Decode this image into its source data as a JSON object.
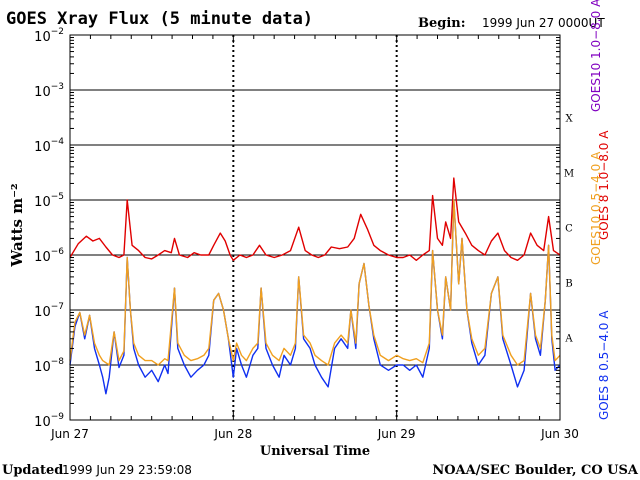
{
  "header": {
    "title": "GOES Xray Flux (5 minute data)",
    "begin_label": "Begin:",
    "begin_value": "1999 Jun 27 0000UT"
  },
  "footer": {
    "updated_label": "Updated",
    "updated_value": "1999 Jun 29 23:59:08",
    "credit": "NOAA/SEC Boulder, CO USA"
  },
  "chart_data": {
    "type": "line",
    "title": "GOES Xray Flux (5 minute data)",
    "xlabel": "Universal Time",
    "ylabel": "Watts m⁻²",
    "y_scale": "log",
    "ylim": [
      1e-09,
      0.01
    ],
    "y_ticks": [
      {
        "value": 1e-09,
        "base": "10",
        "exp": "−9"
      },
      {
        "value": 1e-08,
        "base": "10",
        "exp": "−8"
      },
      {
        "value": 1e-07,
        "base": "10",
        "exp": "−7"
      },
      {
        "value": 1e-06,
        "base": "10",
        "exp": "−6"
      },
      {
        "value": 1e-05,
        "base": "10",
        "exp": "−5"
      },
      {
        "value": 0.0001,
        "base": "10",
        "exp": "−4"
      },
      {
        "value": 0.001,
        "base": "10",
        "exp": "−3"
      },
      {
        "value": 0.01,
        "base": "10",
        "exp": "−2"
      }
    ],
    "x_ticks": [
      "Jun 27",
      "Jun 28",
      "Jun 29",
      "Jun 30"
    ],
    "x_range_days": [
      0,
      3
    ],
    "flare_classes": [
      {
        "label": "A",
        "value": 1e-08
      },
      {
        "label": "B",
        "value": 1e-07
      },
      {
        "label": "C",
        "value": 1e-06
      },
      {
        "label": "M",
        "value": 1e-05
      },
      {
        "label": "X",
        "value": 0.0001
      }
    ],
    "legend_placement": "right, vertical",
    "series": [
      {
        "name": "GOES 8 1.0−8.0 A",
        "color": "#e00000",
        "points": [
          [
            0.0,
            9e-07
          ],
          [
            0.05,
            1.6e-06
          ],
          [
            0.1,
            2.2e-06
          ],
          [
            0.14,
            1.8e-06
          ],
          [
            0.18,
            2e-06
          ],
          [
            0.22,
            1.4e-06
          ],
          [
            0.26,
            1e-06
          ],
          [
            0.3,
            9e-07
          ],
          [
            0.33,
            1e-06
          ],
          [
            0.35,
            1e-05
          ],
          [
            0.38,
            1.5e-06
          ],
          [
            0.42,
            1.2e-06
          ],
          [
            0.46,
            9e-07
          ],
          [
            0.5,
            8.5e-07
          ],
          [
            0.54,
            1e-06
          ],
          [
            0.58,
            1.2e-06
          ],
          [
            0.62,
            1.1e-06
          ],
          [
            0.64,
            2e-06
          ],
          [
            0.67,
            1e-06
          ],
          [
            0.72,
            9e-07
          ],
          [
            0.76,
            1.1e-06
          ],
          [
            0.8,
            1e-06
          ],
          [
            0.85,
            1e-06
          ],
          [
            0.88,
            1.5e-06
          ],
          [
            0.92,
            2.5e-06
          ],
          [
            0.95,
            1.8e-06
          ],
          [
            0.98,
            1e-06
          ],
          [
            1.0,
            8e-07
          ],
          [
            1.04,
            1e-06
          ],
          [
            1.08,
            9e-07
          ],
          [
            1.12,
            1e-06
          ],
          [
            1.16,
            1.5e-06
          ],
          [
            1.2,
            1e-06
          ],
          [
            1.25,
            9e-07
          ],
          [
            1.3,
            1e-06
          ],
          [
            1.35,
            1.2e-06
          ],
          [
            1.4,
            3.2e-06
          ],
          [
            1.44,
            1.2e-06
          ],
          [
            1.48,
            1e-06
          ],
          [
            1.52,
            9e-07
          ],
          [
            1.56,
            1e-06
          ],
          [
            1.6,
            1.4e-06
          ],
          [
            1.65,
            1.3e-06
          ],
          [
            1.7,
            1.4e-06
          ],
          [
            1.74,
            2e-06
          ],
          [
            1.78,
            5.5e-06
          ],
          [
            1.82,
            3e-06
          ],
          [
            1.86,
            1.5e-06
          ],
          [
            1.9,
            1.2e-06
          ],
          [
            1.95,
            1e-06
          ],
          [
            2.0,
            9e-07
          ],
          [
            2.04,
            9e-07
          ],
          [
            2.08,
            1e-06
          ],
          [
            2.12,
            8e-07
          ],
          [
            2.16,
            1e-06
          ],
          [
            2.2,
            1.2e-06
          ],
          [
            2.22,
            1.2e-05
          ],
          [
            2.25,
            2e-06
          ],
          [
            2.28,
            1.5e-06
          ],
          [
            2.3,
            4e-06
          ],
          [
            2.33,
            2e-06
          ],
          [
            2.35,
            2.5e-05
          ],
          [
            2.38,
            4e-06
          ],
          [
            2.42,
            2.5e-06
          ],
          [
            2.46,
            1.5e-06
          ],
          [
            2.5,
            1.2e-06
          ],
          [
            2.54,
            1e-06
          ],
          [
            2.58,
            1.8e-06
          ],
          [
            2.62,
            2.5e-06
          ],
          [
            2.66,
            1.2e-06
          ],
          [
            2.7,
            9e-07
          ],
          [
            2.74,
            8e-07
          ],
          [
            2.78,
            1e-06
          ],
          [
            2.82,
            2.5e-06
          ],
          [
            2.86,
            1.5e-06
          ],
          [
            2.9,
            1.2e-06
          ],
          [
            2.93,
            5e-06
          ],
          [
            2.96,
            1.2e-06
          ],
          [
            3.0,
            1e-06
          ]
        ]
      },
      {
        "name": "GOES10 1.0−8.0 A",
        "color": "#8000c0",
        "points": []
      },
      {
        "name": "GOES 8 0.5−4.0 A",
        "color": "#1030f0",
        "points": [
          [
            0.0,
            1e-08
          ],
          [
            0.03,
            5e-08
          ],
          [
            0.06,
            9e-08
          ],
          [
            0.09,
            3e-08
          ],
          [
            0.12,
            8e-08
          ],
          [
            0.15,
            2e-08
          ],
          [
            0.18,
            1e-08
          ],
          [
            0.2,
            6e-09
          ],
          [
            0.22,
            3e-09
          ],
          [
            0.24,
            6e-09
          ],
          [
            0.27,
            4e-08
          ],
          [
            0.3,
            9e-09
          ],
          [
            0.33,
            1.5e-08
          ],
          [
            0.35,
            9e-07
          ],
          [
            0.37,
            1e-07
          ],
          [
            0.39,
            2e-08
          ],
          [
            0.42,
            1e-08
          ],
          [
            0.46,
            6e-09
          ],
          [
            0.5,
            8e-09
          ],
          [
            0.54,
            5e-09
          ],
          [
            0.58,
            1e-08
          ],
          [
            0.6,
            7e-09
          ],
          [
            0.64,
            2.5e-07
          ],
          [
            0.66,
            2e-08
          ],
          [
            0.7,
            1e-08
          ],
          [
            0.74,
            6e-09
          ],
          [
            0.78,
            8e-09
          ],
          [
            0.82,
            1e-08
          ],
          [
            0.85,
            1.5e-08
          ],
          [
            0.88,
            1.5e-07
          ],
          [
            0.91,
            2e-07
          ],
          [
            0.94,
            1e-07
          ],
          [
            0.97,
            3e-08
          ],
          [
            1.0,
            6e-09
          ],
          [
            1.02,
            2e-08
          ],
          [
            1.05,
            1e-08
          ],
          [
            1.08,
            6e-09
          ],
          [
            1.12,
            1.5e-08
          ],
          [
            1.15,
            2e-08
          ],
          [
            1.17,
            2.5e-07
          ],
          [
            1.2,
            2e-08
          ],
          [
            1.24,
            1e-08
          ],
          [
            1.28,
            6e-09
          ],
          [
            1.31,
            1.5e-08
          ],
          [
            1.35,
            1e-08
          ],
          [
            1.38,
            2e-08
          ],
          [
            1.4,
            4e-07
          ],
          [
            1.43,
            3e-08
          ],
          [
            1.47,
            2e-08
          ],
          [
            1.5,
            1e-08
          ],
          [
            1.54,
            6e-09
          ],
          [
            1.58,
            4e-09
          ],
          [
            1.62,
            2e-08
          ],
          [
            1.66,
            3e-08
          ],
          [
            1.7,
            2e-08
          ],
          [
            1.72,
            1e-07
          ],
          [
            1.75,
            2e-08
          ],
          [
            1.77,
            3e-07
          ],
          [
            1.8,
            7e-07
          ],
          [
            1.83,
            1.2e-07
          ],
          [
            1.86,
            3e-08
          ],
          [
            1.9,
            1e-08
          ],
          [
            1.95,
            8e-09
          ],
          [
            2.0,
            1e-08
          ],
          [
            2.04,
            1e-08
          ],
          [
            2.08,
            8e-09
          ],
          [
            2.12,
            1e-08
          ],
          [
            2.16,
            6e-09
          ],
          [
            2.2,
            2e-08
          ],
          [
            2.22,
            1.2e-06
          ],
          [
            2.25,
            1e-07
          ],
          [
            2.28,
            3e-08
          ],
          [
            2.3,
            4e-07
          ],
          [
            2.33,
            1e-07
          ],
          [
            2.35,
            1e-05
          ],
          [
            2.38,
            3e-07
          ],
          [
            2.4,
            2e-06
          ],
          [
            2.43,
            1e-07
          ],
          [
            2.46,
            2.5e-08
          ],
          [
            2.5,
            1e-08
          ],
          [
            2.54,
            1.5e-08
          ],
          [
            2.58,
            2e-07
          ],
          [
            2.62,
            4e-07
          ],
          [
            2.65,
            3e-08
          ],
          [
            2.7,
            1e-08
          ],
          [
            2.74,
            4e-09
          ],
          [
            2.78,
            8e-09
          ],
          [
            2.82,
            2e-07
          ],
          [
            2.85,
            3e-08
          ],
          [
            2.88,
            1.5e-08
          ],
          [
            2.91,
            1.5e-07
          ],
          [
            2.93,
            1.5e-06
          ],
          [
            2.95,
            3e-08
          ],
          [
            2.97,
            8e-09
          ],
          [
            3.0,
            1e-08
          ]
        ]
      },
      {
        "name": "GOES10 0.5−4.0 A",
        "color": "#f0a020",
        "points": [
          [
            0.0,
            1.2e-08
          ],
          [
            0.03,
            6e-08
          ],
          [
            0.06,
            9e-08
          ],
          [
            0.09,
            3.5e-08
          ],
          [
            0.12,
            8e-08
          ],
          [
            0.15,
            2.5e-08
          ],
          [
            0.18,
            1.5e-08
          ],
          [
            0.2,
            1.2e-08
          ],
          [
            0.24,
            1e-08
          ],
          [
            0.27,
            4e-08
          ],
          [
            0.3,
            1.2e-08
          ],
          [
            0.33,
            1.8e-08
          ],
          [
            0.35,
            9e-07
          ],
          [
            0.37,
            1e-07
          ],
          [
            0.39,
            2.5e-08
          ],
          [
            0.42,
            1.5e-08
          ],
          [
            0.46,
            1.2e-08
          ],
          [
            0.5,
            1.2e-08
          ],
          [
            0.54,
            1e-08
          ],
          [
            0.58,
            1.3e-08
          ],
          [
            0.6,
            1.2e-08
          ],
          [
            0.64,
            2.5e-07
          ],
          [
            0.66,
            2.5e-08
          ],
          [
            0.7,
            1.5e-08
          ],
          [
            0.74,
            1.2e-08
          ],
          [
            0.78,
            1.3e-08
          ],
          [
            0.82,
            1.5e-08
          ],
          [
            0.85,
            2e-08
          ],
          [
            0.88,
            1.5e-07
          ],
          [
            0.91,
            2e-07
          ],
          [
            0.94,
            1e-07
          ],
          [
            0.97,
            3e-08
          ],
          [
            1.0,
            1.2e-08
          ],
          [
            1.02,
            2.5e-08
          ],
          [
            1.05,
            1.5e-08
          ],
          [
            1.08,
            1.2e-08
          ],
          [
            1.12,
            2e-08
          ],
          [
            1.15,
            2.5e-08
          ],
          [
            1.17,
            2.5e-07
          ],
          [
            1.2,
            2.5e-08
          ],
          [
            1.24,
            1.5e-08
          ],
          [
            1.28,
            1.2e-08
          ],
          [
            1.31,
            2e-08
          ],
          [
            1.35,
            1.5e-08
          ],
          [
            1.38,
            2.5e-08
          ],
          [
            1.4,
            4e-07
          ],
          [
            1.43,
            3.5e-08
          ],
          [
            1.47,
            2.5e-08
          ],
          [
            1.5,
            1.5e-08
          ],
          [
            1.54,
            1.2e-08
          ],
          [
            1.58,
            1e-08
          ],
          [
            1.62,
            2.5e-08
          ],
          [
            1.66,
            3.5e-08
          ],
          [
            1.7,
            2.5e-08
          ],
          [
            1.72,
            1e-07
          ],
          [
            1.75,
            2.5e-08
          ],
          [
            1.77,
            3e-07
          ],
          [
            1.8,
            7e-07
          ],
          [
            1.83,
            1.2e-07
          ],
          [
            1.86,
            3.5e-08
          ],
          [
            1.9,
            1.5e-08
          ],
          [
            1.95,
            1.2e-08
          ],
          [
            2.0,
            1.5e-08
          ],
          [
            2.04,
            1.3e-08
          ],
          [
            2.08,
            1.2e-08
          ],
          [
            2.12,
            1.3e-08
          ],
          [
            2.16,
            1.1e-08
          ],
          [
            2.2,
            2.5e-08
          ],
          [
            2.22,
            1.2e-06
          ],
          [
            2.25,
            1e-07
          ],
          [
            2.28,
            3.5e-08
          ],
          [
            2.3,
            4e-07
          ],
          [
            2.33,
            1e-07
          ],
          [
            2.35,
            1e-05
          ],
          [
            2.38,
            3e-07
          ],
          [
            2.4,
            2e-06
          ],
          [
            2.43,
            1e-07
          ],
          [
            2.46,
            3e-08
          ],
          [
            2.5,
            1.5e-08
          ],
          [
            2.54,
            2e-08
          ],
          [
            2.58,
            2e-07
          ],
          [
            2.62,
            4e-07
          ],
          [
            2.65,
            3.5e-08
          ],
          [
            2.7,
            1.5e-08
          ],
          [
            2.74,
            1e-08
          ],
          [
            2.78,
            1.2e-08
          ],
          [
            2.82,
            2e-07
          ],
          [
            2.85,
            3.5e-08
          ],
          [
            2.88,
            2e-08
          ],
          [
            2.91,
            1.5e-07
          ],
          [
            2.93,
            1.5e-06
          ],
          [
            2.95,
            3.5e-08
          ],
          [
            2.97,
            1.2e-08
          ],
          [
            3.0,
            1.5e-08
          ]
        ]
      }
    ]
  }
}
